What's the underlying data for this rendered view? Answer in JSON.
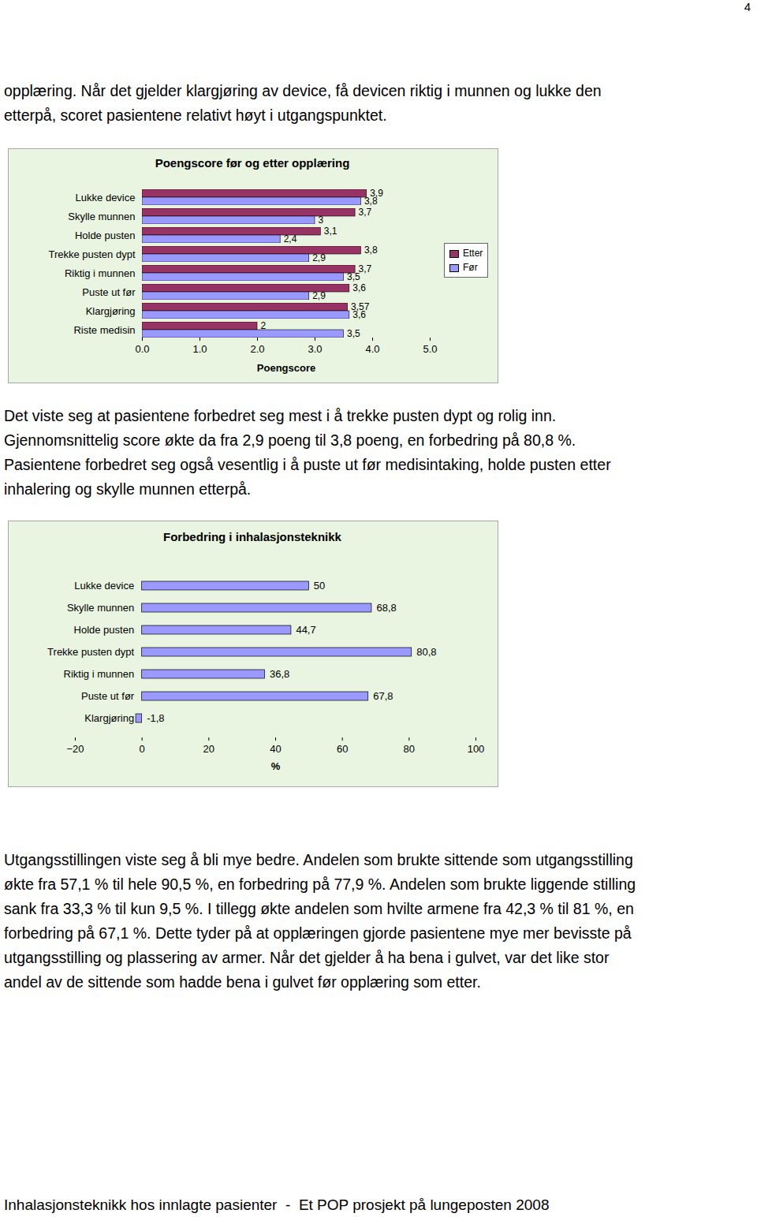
{
  "document": {
    "page_number": "4",
    "paragraphs": [
      [
        "opplæring. Når det gjelder klargjøring av device, få devicen riktig i munnen og lukke den",
        "etterpå, scoret pasientene relativt høyt i utgangspunktet."
      ],
      [
        "Det viste seg at pasientene forbedret seg mest i å trekke pusten dypt og rolig inn.",
        "Gjennomsnittelig score økte da fra 2,9 poeng til 3,8 poeng, en forbedring på 80,8 %.",
        "Pasientene forbedret seg også vesentlig i å puste ut før medisintaking, holde pusten etter",
        "inhalering og skylle munnen etterpå."
      ],
      [
        "Utgangsstillingen viste seg å bli mye bedre. Andelen som brukte sittende som utgangsstilling",
        "økte fra 57,1 % til hele 90,5 %, en forbedring på 77,9 %. Andelen som brukte liggende stilling",
        "sank fra 33,3 % til kun 9,5 %. I tillegg økte andelen som hvilte armene fra 42,3 % til 81 %, en",
        "forbedring på 67,1 %. Dette tyder på at opplæringen gjorde pasientene mye mer bevisste på",
        "utgangsstilling og plassering av armer. Når det gjelder å ha bena i gulvet, var det like stor",
        "andel av de sittende som hadde bena i gulvet før opplæring som etter."
      ]
    ],
    "footer": "Inhalasjonsteknikk hos innlagte pasienter  -  Et POP prosjekt på lungeposten 2008"
  },
  "chart_data": [
    {
      "type": "bar",
      "orientation": "horizontal",
      "title": "Poengscore før og etter opplæring",
      "x_label": "Poengscore",
      "categories": [
        "Lukke device",
        "Skylle munnen",
        "Holde pusten",
        "Trekke pusten dypt",
        "Riktig i munnen",
        "Puste ut før",
        "Klargjøring",
        "Riste medisin"
      ],
      "series": [
        {
          "name": "Etter",
          "color": "#993366",
          "values": [
            3.9,
            3.7,
            3.1,
            3.8,
            3.7,
            3.6,
            3.57,
            2
          ],
          "value_labels": [
            "3,9",
            "3,7",
            "3,1",
            "3,8",
            "3,7",
            "3,6",
            "3,57",
            "2"
          ]
        },
        {
          "name": "Før",
          "color": "#9999ff",
          "values": [
            3.8,
            3,
            2.4,
            2.9,
            3.5,
            2.9,
            3.6,
            3.5
          ],
          "value_labels": [
            "3,8",
            "3",
            "2,4",
            "2,9",
            "3,5",
            "2,9",
            "3,6",
            "3,5"
          ]
        }
      ],
      "xlim": [
        0,
        5
      ],
      "xticks": [
        0,
        1,
        2,
        3,
        4,
        5
      ],
      "data_labels": true,
      "legend": "right"
    },
    {
      "type": "bar",
      "orientation": "horizontal",
      "title": "Forbedring i inhalasjonsteknikk",
      "x_label": "%",
      "categories": [
        "Lukke device",
        "Skylle munnen",
        "Holde pusten",
        "Trekke pusten dypt",
        "Riktig i munnen",
        "Puste ut før",
        "Klargjøring"
      ],
      "values": [
        50,
        68.8,
        44.7,
        80.8,
        36.8,
        67.8,
        -1.8
      ],
      "value_labels": [
        "50",
        "68,8",
        "44,7",
        "80,8",
        "36,8",
        "67,8",
        "-1,8"
      ],
      "color": "#9999ff",
      "xlim": [
        -20,
        100
      ],
      "xticks": [
        -20,
        0,
        20,
        40,
        60,
        80,
        100
      ],
      "data_labels": true
    }
  ]
}
